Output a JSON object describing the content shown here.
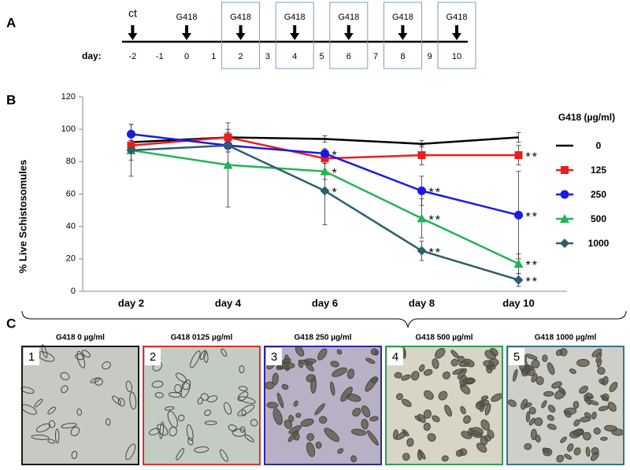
{
  "panel_labels": [
    "A",
    "B",
    "C"
  ],
  "timeline": {
    "day_label": "day:",
    "days": [
      -2,
      -1,
      0,
      1,
      2,
      3,
      4,
      5,
      6,
      7,
      8,
      9,
      10
    ],
    "treatments": [
      {
        "label": "ct",
        "day": -2,
        "boxed": false
      },
      {
        "label": "G418",
        "day": 0,
        "boxed": false
      },
      {
        "label": "G418",
        "day": 2,
        "boxed": true
      },
      {
        "label": "G418",
        "day": 4,
        "boxed": true
      },
      {
        "label": "G418",
        "day": 6,
        "boxed": true
      },
      {
        "label": "G418",
        "day": 8,
        "boxed": true
      },
      {
        "label": "G418",
        "day": 10,
        "boxed": true
      }
    ]
  },
  "chart_data": {
    "type": "line",
    "y_label": "% Live Schistosomules",
    "categories": [
      "day 2",
      "day 4",
      "day 6",
      "day 8",
      "day 10"
    ],
    "ylim": [
      0,
      120
    ],
    "yticks": [
      0,
      20,
      40,
      60,
      80,
      100,
      120
    ],
    "legend_title": "G418 (µg/ml)",
    "legend": "right",
    "series": [
      {
        "name": "0",
        "color": "#000000",
        "marker": "none",
        "values": [
          92,
          95,
          94,
          91,
          95
        ],
        "errors": [
          3,
          3,
          2,
          2,
          3
        ],
        "annotations": [
          null,
          null,
          null,
          null,
          null
        ]
      },
      {
        "name": "125",
        "color": "#ee1c1c",
        "marker": "square",
        "values": [
          90,
          95,
          82,
          84,
          84
        ],
        "errors": [
          3,
          5,
          3,
          6,
          6
        ],
        "annotations": [
          null,
          null,
          null,
          null,
          "**"
        ]
      },
      {
        "name": "250",
        "color": "#1a1ae6",
        "marker": "circle",
        "values": [
          97,
          90,
          85,
          62,
          47
        ],
        "errors": [
          6,
          4,
          3,
          9,
          27
        ],
        "annotations": [
          null,
          null,
          "*",
          "**",
          "**"
        ]
      },
      {
        "name": "500",
        "color": "#22b552",
        "marker": "triangle",
        "values": [
          87,
          78,
          74,
          45,
          17
        ],
        "errors": [
          6,
          26,
          5,
          12,
          6
        ],
        "annotations": [
          null,
          null,
          "*",
          "**",
          "**"
        ]
      },
      {
        "name": "1000",
        "color": "#2e5e6e",
        "marker": "diamond",
        "values": [
          87,
          90,
          62,
          25,
          7
        ],
        "errors": [
          16,
          4,
          21,
          6,
          4
        ],
        "annotations": [
          null,
          null,
          "*",
          "**",
          "**"
        ]
      }
    ]
  },
  "images": [
    {
      "number": "1",
      "title": "G418 0 µg/ml",
      "color": "#1a1a1a"
    },
    {
      "number": "2",
      "title": "G418 0125 µg/ml",
      "color": "#e03030"
    },
    {
      "number": "3",
      "title": "G418 250 µg/ml",
      "color": "#2a2aa0"
    },
    {
      "number": "4",
      "title": "G418 500 µg/ml",
      "color": "#2ea050"
    },
    {
      "number": "5",
      "title": "G418 1000 µg/ml",
      "color": "#3a7585"
    }
  ]
}
